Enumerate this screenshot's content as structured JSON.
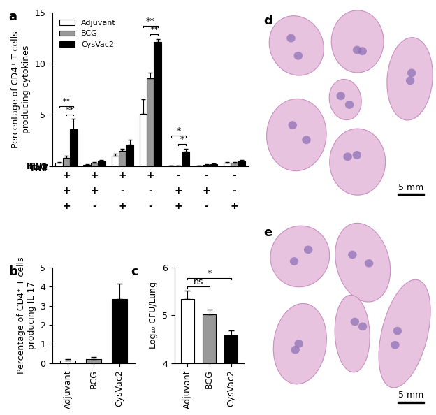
{
  "chart_data": [
    {
      "type": "bar",
      "panel": "a",
      "y_label": "Percentage of CD4⁺ T cells\nproducing cytokines",
      "categories": [
        null,
        null,
        null,
        null,
        null,
        null,
        null
      ],
      "category_table": {
        "rows": [
          "IFNγ",
          "IL-2",
          "TNF"
        ],
        "cells": [
          [
            "+",
            "+",
            "+",
            "+",
            "-",
            "-",
            "-"
          ],
          [
            "+",
            "+",
            "-",
            "-",
            "+",
            "+",
            "-"
          ],
          [
            "+",
            "-",
            "+",
            "-",
            "+",
            "-",
            "+"
          ]
        ]
      },
      "series": [
        {
          "name": "Adjuvant",
          "color": "#ffffff",
          "values": [
            0.3,
            0.1,
            1.0,
            5.1,
            0.05,
            0.05,
            0.3
          ],
          "errors": [
            0.1,
            0.05,
            0.2,
            1.4,
            0.02,
            0.02,
            0.1
          ]
        },
        {
          "name": "BCG",
          "color": "#999999",
          "values": [
            0.8,
            0.3,
            1.5,
            8.6,
            0.05,
            0.1,
            0.3
          ],
          "errors": [
            0.2,
            0.1,
            0.15,
            0.5,
            0.02,
            0.05,
            0.1
          ]
        },
        {
          "name": "CysVac2",
          "color": "#000000",
          "values": [
            3.6,
            0.5,
            2.1,
            12.1,
            1.4,
            0.2,
            0.5
          ],
          "errors": [
            1.0,
            0.1,
            0.5,
            0.3,
            0.3,
            0.05,
            0.1
          ]
        }
      ],
      "annotations": [
        {
          "category": 0,
          "from": "BCG",
          "to": "CysVac2",
          "text": "**"
        },
        {
          "category": 0,
          "from": "Adjuvant",
          "to": "CysVac2",
          "text": "**"
        },
        {
          "category": 3,
          "from": "BCG",
          "to": "CysVac2",
          "text": "**"
        },
        {
          "category": 3,
          "from": "Adjuvant",
          "to": "CysVac2",
          "text": "**"
        },
        {
          "category": 4,
          "from": "BCG",
          "to": "CysVac2",
          "text": "*"
        },
        {
          "category": 4,
          "from": "Adjuvant",
          "to": "CysVac2",
          "text": "*"
        }
      ],
      "ylim": [
        0,
        15
      ],
      "yticks": [
        0,
        5,
        10,
        15
      ],
      "legend": "upper left"
    },
    {
      "type": "bar",
      "panel": "b",
      "y_label": "Percentage of CD4⁺ T cells\nproducing IL-17",
      "categories": [
        "Adjuvant",
        "BCG",
        "CysVac2"
      ],
      "values": [
        0.15,
        0.22,
        3.35
      ],
      "errors": [
        0.07,
        0.1,
        0.8
      ],
      "colors": [
        "#ffffff",
        "#999999",
        "#000000"
      ],
      "ylim": [
        0,
        5
      ],
      "yticks": [
        0,
        1,
        2,
        3,
        4,
        5
      ]
    },
    {
      "type": "bar",
      "panel": "c",
      "y_label": "Log₁₀ CFU/Lung",
      "categories": [
        "Adjuvant",
        "BCG",
        "CysVac2"
      ],
      "values": [
        5.35,
        5.02,
        4.58
      ],
      "errors": [
        0.17,
        0.1,
        0.1
      ],
      "colors": [
        "#ffffff",
        "#999999",
        "#000000"
      ],
      "annotations": [
        {
          "from": "Adjuvant",
          "to": "BCG",
          "text": "ns"
        },
        {
          "from": "Adjuvant",
          "to": "CysVac2",
          "text": "*"
        }
      ],
      "ylim": [
        4,
        6
      ],
      "yticks": [
        4,
        5,
        6
      ]
    },
    {
      "type": "image",
      "panel": "d",
      "scale_bar": "5 mm"
    },
    {
      "type": "image",
      "panel": "e",
      "scale_bar": "5 mm"
    }
  ]
}
